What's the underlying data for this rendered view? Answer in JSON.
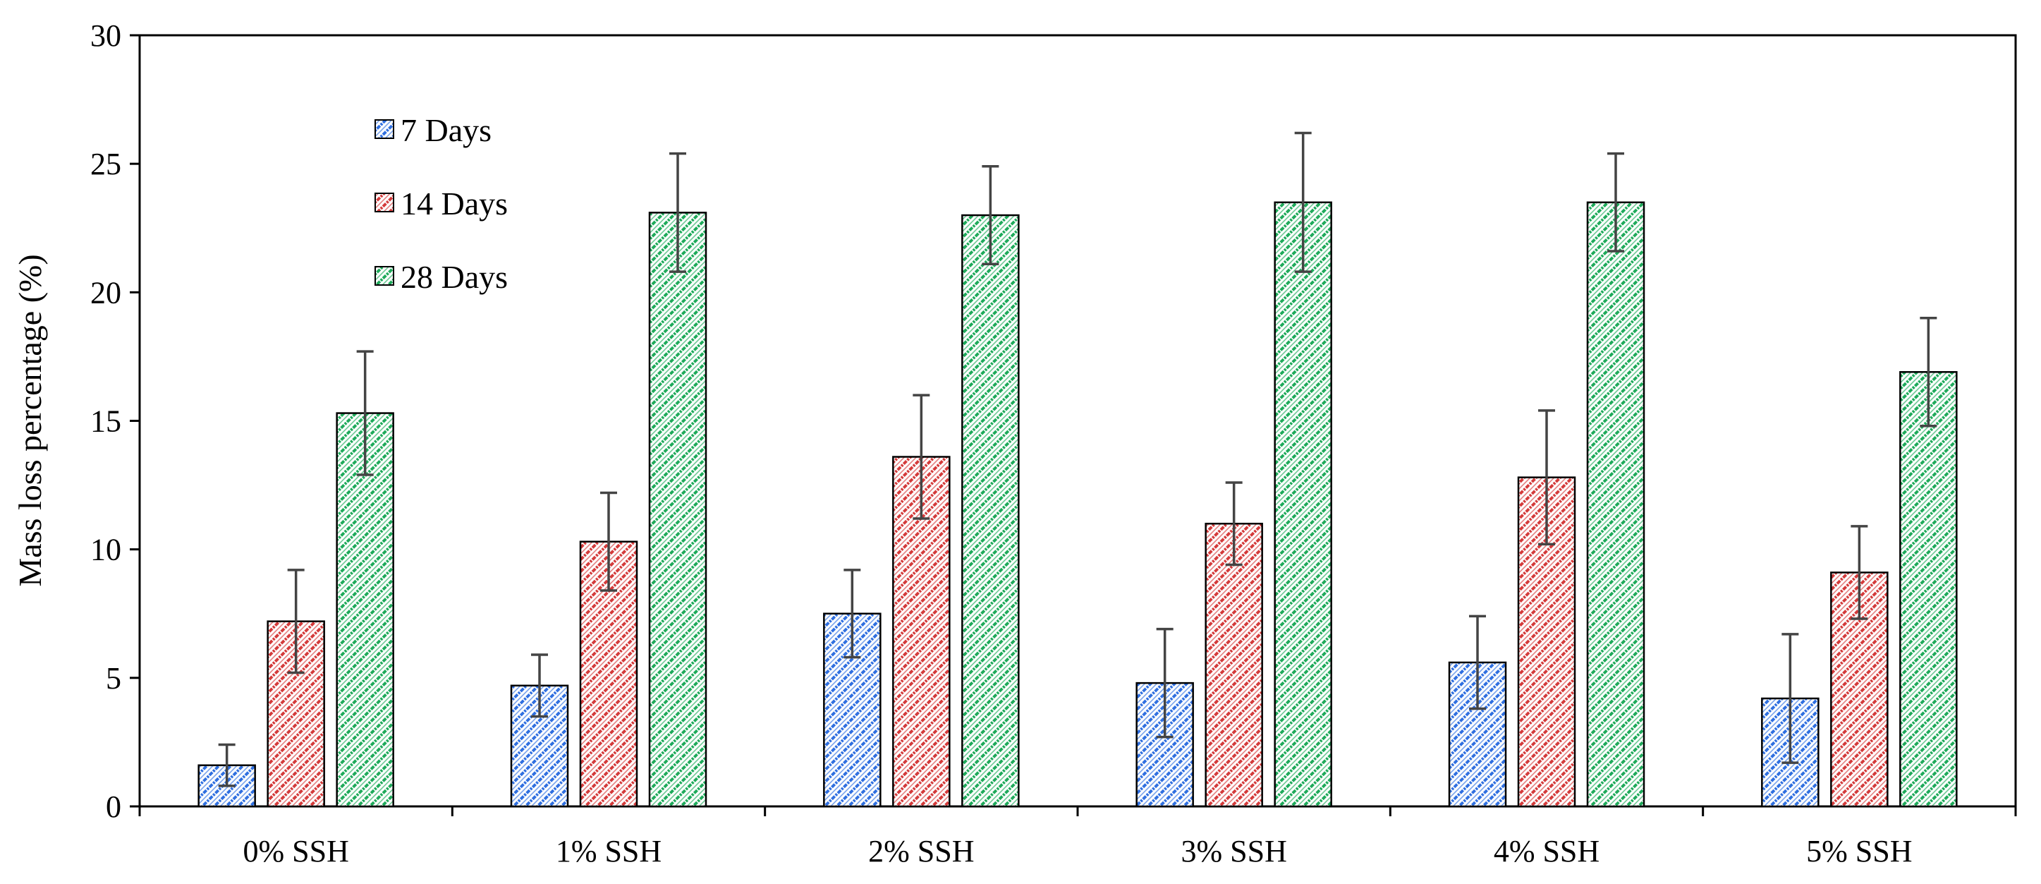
{
  "chart_data": {
    "type": "bar",
    "title": "",
    "xlabel": "",
    "ylabel": "Mass loss percentage (%)",
    "ylim": [
      0,
      30
    ],
    "yticks": [
      0,
      5,
      10,
      15,
      20,
      25,
      30
    ],
    "categories": [
      "0% SSH",
      "1% SSH",
      "2% SSH",
      "3% SSH",
      "4% SSH",
      "5% SSH"
    ],
    "series": [
      {
        "name": "7 Days",
        "color": "#2f6fe0",
        "values": [
          1.6,
          4.7,
          7.5,
          4.8,
          5.6,
          4.2
        ],
        "errors": [
          0.8,
          1.2,
          1.7,
          2.1,
          1.8,
          2.5
        ]
      },
      {
        "name": "14 Days",
        "color": "#d43a3a",
        "values": [
          7.2,
          10.3,
          13.6,
          11.0,
          12.8,
          9.1
        ],
        "errors": [
          2.0,
          1.9,
          2.4,
          1.6,
          2.6,
          1.8
        ]
      },
      {
        "name": "28 Days",
        "color": "#1eaa5a",
        "values": [
          15.3,
          23.1,
          23.0,
          23.5,
          23.5,
          16.9
        ],
        "errors": [
          2.4,
          2.3,
          1.9,
          2.7,
          1.9,
          2.1
        ]
      }
    ],
    "legend_position": "top-left-inside",
    "grid": false,
    "error_bars": true,
    "pattern": "diagonal-hatch"
  }
}
